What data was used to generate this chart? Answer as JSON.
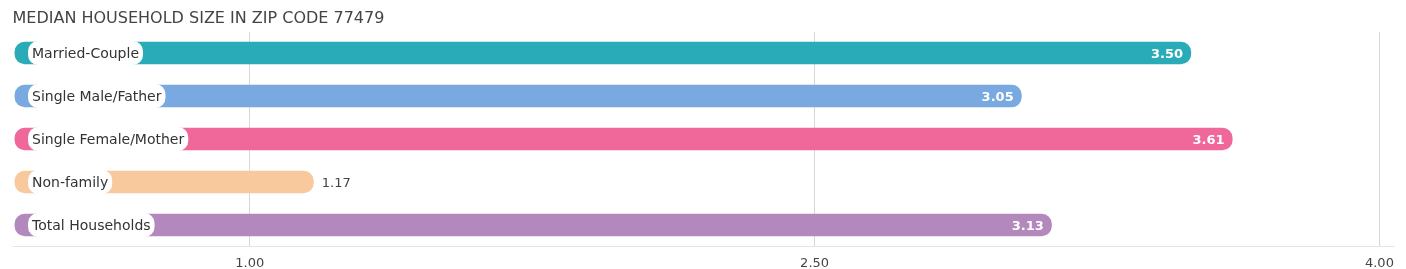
{
  "chart_data": {
    "type": "bar",
    "orientation": "horizontal",
    "title": "MEDIAN HOUSEHOLD SIZE IN ZIP CODE 77479",
    "categories": [
      "Married-Couple",
      "Single Male/Father",
      "Single Female/Mother",
      "Non-family",
      "Total Households"
    ],
    "values": [
      3.5,
      3.05,
      3.61,
      1.17,
      3.13
    ],
    "value_labels": [
      "3.50",
      "3.05",
      "3.61",
      "1.17",
      "3.13"
    ],
    "colors": [
      "#2aabb8",
      "#78a9e0",
      "#f0679a",
      "#f8c99c",
      "#b388bd"
    ],
    "xlim": [
      0.37,
      4.04
    ],
    "xticks": [
      {
        "value": 1,
        "label": "1.00"
      },
      {
        "value": 2.5,
        "label": "2.50"
      },
      {
        "value": 4,
        "label": "4.00"
      }
    ],
    "grid": "x",
    "tick_labels": "x"
  }
}
